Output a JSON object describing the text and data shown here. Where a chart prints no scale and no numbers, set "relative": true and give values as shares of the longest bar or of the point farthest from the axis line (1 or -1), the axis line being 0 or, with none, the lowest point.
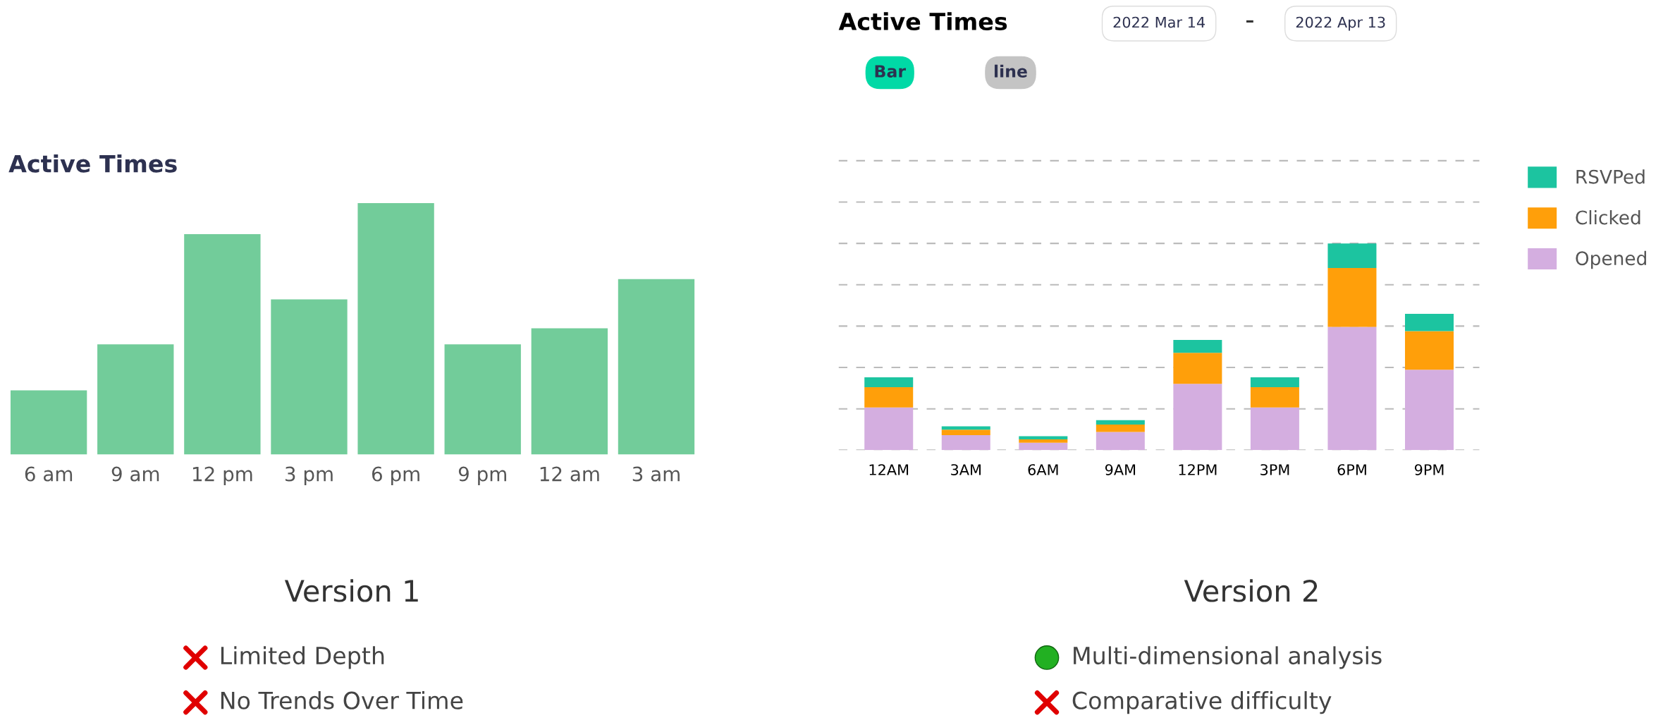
{
  "chart_data": [
    {
      "type": "bar",
      "title": "Active Times",
      "relative": true,
      "grid": false,
      "categories": [
        "6 am",
        "9 am",
        "12 pm",
        "3 pm",
        "6 pm",
        "9 pm",
        "12 am",
        "3 am"
      ],
      "values": [
        0.255,
        0.438,
        0.877,
        0.617,
        1,
        0.438,
        0.502,
        0.698
      ],
      "color": "#72cc9a",
      "annotations": [
        "Version 1",
        "Limited Depth",
        "No Trends Over Time"
      ]
    },
    {
      "type": "bar",
      "title": "Active Times",
      "relative": true,
      "stacked": true,
      "grid": "y",
      "legend": "right",
      "tick_labels": "x",
      "categories": [
        "12AM",
        "3AM",
        "6AM",
        "9AM",
        "12PM",
        "3PM",
        "6PM",
        "9PM"
      ],
      "series": [
        {
          "name": "Opened",
          "color": "#d4aee0",
          "values": [
            0.207,
            0.073,
            0.036,
            0.088,
            0.321,
            0.207,
            0.596,
            0.389
          ]
        },
        {
          "name": "Clicked",
          "color": "#ff9f0a",
          "values": [
            0.098,
            0.026,
            0.016,
            0.036,
            0.15,
            0.098,
            0.285,
            0.187
          ]
        },
        {
          "name": "RSVPed",
          "color": "#1cc4a0",
          "values": [
            0.047,
            0.016,
            0.016,
            0.021,
            0.062,
            0.047,
            0.119,
            0.083
          ]
        }
      ],
      "annotations": [
        "2022 Mar 14",
        "–",
        "2022 Apr 13",
        "Bar",
        "line",
        "Version 2",
        "Multi-dimensional analysis",
        "Comparative difficulty"
      ]
    }
  ]
}
